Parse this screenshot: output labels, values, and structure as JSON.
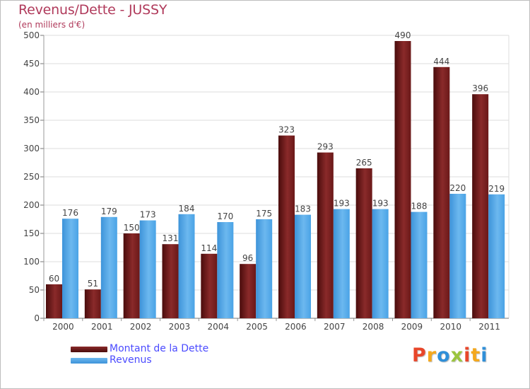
{
  "header": {
    "title": "Revenus/Dette - JUSSY",
    "subtitle": "(en milliers d'€)"
  },
  "legend": {
    "items": [
      {
        "label": "Montant de la Dette",
        "color": "#6e1a1a"
      },
      {
        "label": "Revenus",
        "color": "#4aa3e6"
      }
    ]
  },
  "logo": {
    "text": "Proxiti",
    "letters": [
      {
        "ch": "P",
        "color": "#e8462a"
      },
      {
        "ch": "r",
        "color": "#f4a81d"
      },
      {
        "ch": "o",
        "color": "#2f8fd8"
      },
      {
        "ch": "x",
        "color": "#9bc53d"
      },
      {
        "ch": "i",
        "color": "#e8462a"
      },
      {
        "ch": "t",
        "color": "#f4a81d"
      },
      {
        "ch": "i",
        "color": "#2f8fd8"
      }
    ]
  },
  "chart_data": {
    "type": "bar",
    "title": "Revenus/Dette - JUSSY",
    "subtitle": "(en milliers d'€)",
    "categories": [
      "2000",
      "2001",
      "2002",
      "2003",
      "2004",
      "2005",
      "2006",
      "2007",
      "2008",
      "2009",
      "2010",
      "2011"
    ],
    "series": [
      {
        "name": "Montant de la Dette",
        "color": "#6e1a1a",
        "values": [
          60,
          51,
          150,
          131,
          114,
          96,
          323,
          293,
          265,
          490,
          444,
          396
        ]
      },
      {
        "name": "Revenus",
        "color": "#4aa3e6",
        "values": [
          176,
          179,
          173,
          184,
          170,
          175,
          183,
          193,
          193,
          188,
          220,
          219
        ]
      }
    ],
    "ylim": [
      0,
      500
    ],
    "yticks": [
      0,
      50,
      100,
      150,
      200,
      250,
      300,
      350,
      400,
      450,
      500
    ],
    "grid": true,
    "legend_position": "bottom-left"
  }
}
